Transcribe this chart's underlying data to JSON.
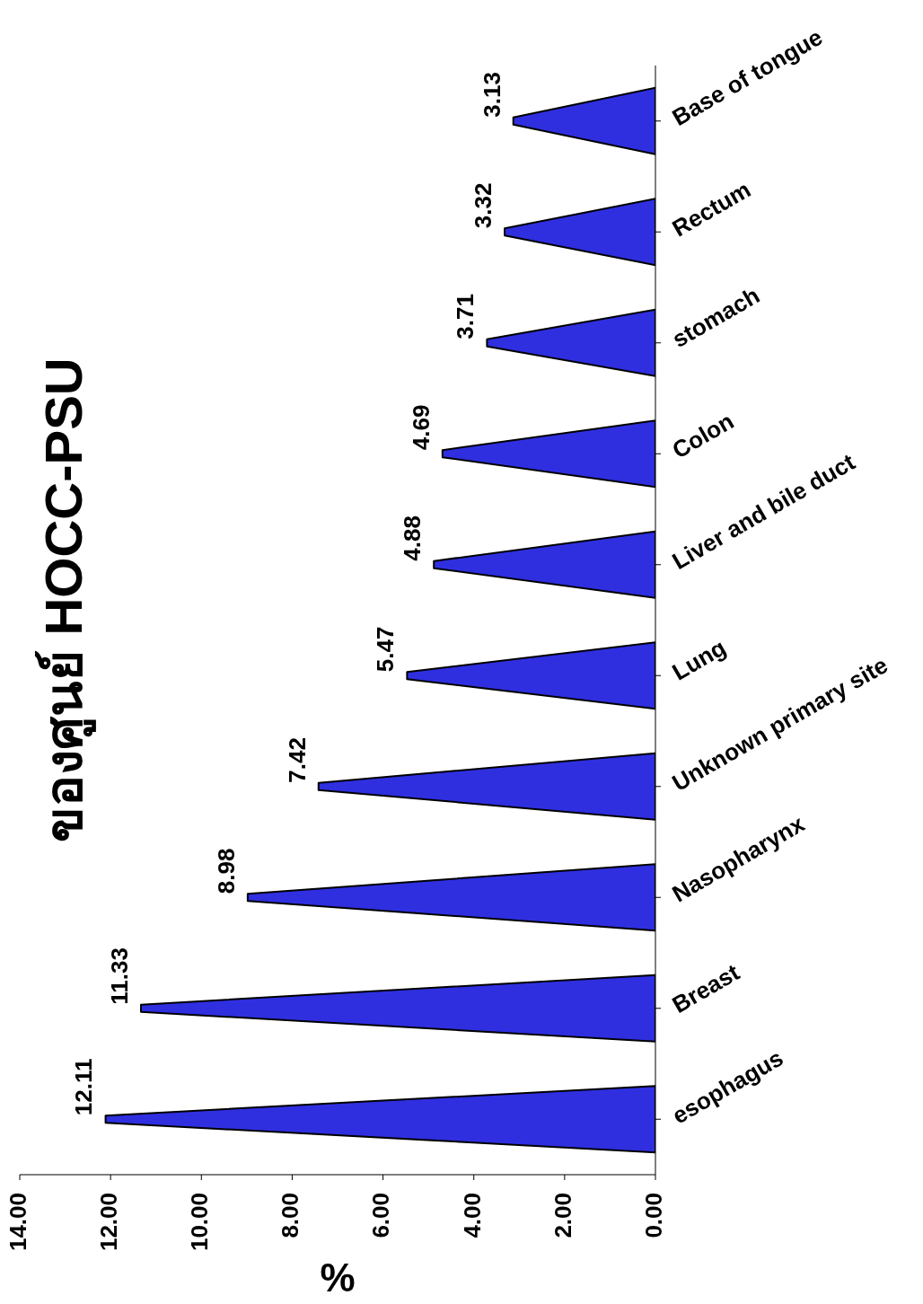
{
  "chart_data": {
    "type": "bar",
    "orientation": "horizontal",
    "title": "ของศูนย์ HOCC-PSU",
    "xlabel": "%",
    "categories": [
      "Base of tongue",
      "Rectum",
      "stomach",
      "Colon",
      "Liver and bile duct",
      "Lung",
      "Unknown primary site",
      "Nasopharynx",
      "Breast",
      "esophagus"
    ],
    "values": [
      3.13,
      3.32,
      3.71,
      4.69,
      4.88,
      5.47,
      7.42,
      8.98,
      11.33,
      12.11
    ],
    "color": "#2f2fe0",
    "xlim": [
      14,
      0
    ],
    "xticks": [
      {
        "value": 14,
        "label": "14.00"
      },
      {
        "value": 12,
        "label": "12.00"
      },
      {
        "value": 10,
        "label": "10.00"
      },
      {
        "value": 8,
        "label": "8.00"
      },
      {
        "value": 6,
        "label": "6.00"
      },
      {
        "value": 4,
        "label": "4.00"
      },
      {
        "value": 2,
        "label": "2.00"
      },
      {
        "value": 0,
        "label": "0.00"
      }
    ],
    "data_labels": true
  }
}
